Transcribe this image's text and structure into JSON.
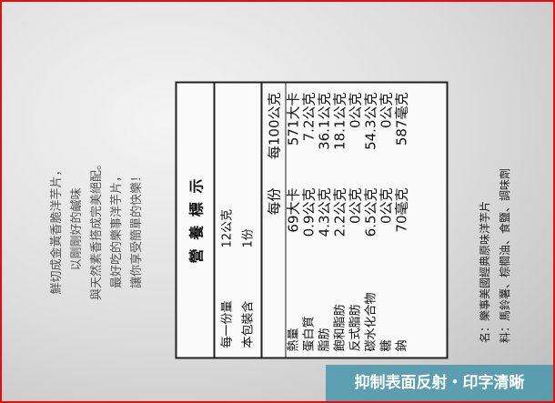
{
  "slogan": [
    "鮮切成金黃香脆洋芋片，",
    "以剛剛好的鹹味",
    "與天然素香搭成完美絕配。",
    "最好吃的樂事洋芋片，",
    "讓你享受簡單的快樂！"
  ],
  "label": {
    "title": "營 養 標 示",
    "serving": [
      [
        "每一份量",
        "12公克"
      ],
      [
        "本包裝含",
        "1份"
      ]
    ],
    "header": [
      "每份",
      "每100公克"
    ],
    "rows": [
      [
        "熱量",
        "69大卡",
        "571大卡"
      ],
      [
        "蛋白質",
        "0.9公克",
        "7.2公克"
      ],
      [
        "脂肪",
        "4.3公克",
        "36.1公克"
      ],
      [
        "飽和脂肪",
        "2.2公克",
        "18.1公克"
      ],
      [
        "反式脂肪",
        "0公克",
        "0公克"
      ],
      [
        "碳水化合物",
        "6.5公克",
        "54.3公克"
      ],
      [
        "糖",
        "0公克",
        "0公克"
      ],
      [
        "鈉",
        "70毫克",
        "587毫克"
      ]
    ]
  },
  "ingredients": [
    "名：樂事美國經典原味洋芋片",
    "料：馬鈴薯、棕櫚油、食鹽、調味劑"
  ],
  "caption": "抑制表面反射・印字清晰"
}
